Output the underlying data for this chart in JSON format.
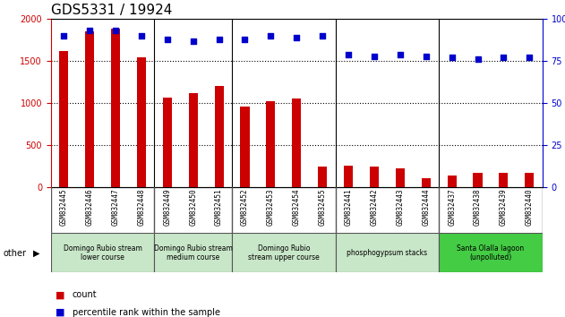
{
  "title": "GDS5331 / 19924",
  "categories": [
    "GSM832445",
    "GSM832446",
    "GSM832447",
    "GSM832448",
    "GSM832449",
    "GSM832450",
    "GSM832451",
    "GSM832452",
    "GSM832453",
    "GSM832454",
    "GSM832455",
    "GSM832441",
    "GSM832442",
    "GSM832443",
    "GSM832444",
    "GSM832437",
    "GSM832438",
    "GSM832439",
    "GSM832440"
  ],
  "counts": [
    1620,
    1850,
    1880,
    1540,
    1060,
    1120,
    1200,
    960,
    1020,
    1050,
    245,
    250,
    245,
    220,
    110,
    140,
    170,
    165,
    170
  ],
  "percentile": [
    90,
    93,
    93,
    90,
    88,
    87,
    88,
    88,
    90,
    89,
    90,
    79,
    78,
    79,
    78,
    77,
    76,
    77,
    77
  ],
  "count_color": "#cc0000",
  "dot_color": "#0000cc",
  "ylim_left": [
    0,
    2000
  ],
  "ylim_right": [
    0,
    100
  ],
  "yticks_left": [
    0,
    500,
    1000,
    1500,
    2000
  ],
  "yticks_right": [
    0,
    25,
    50,
    75,
    100
  ],
  "groups": [
    {
      "label": "Domingo Rubio stream\nlower course",
      "start": 0,
      "end": 4,
      "color": "#c8e6c8"
    },
    {
      "label": "Domingo Rubio stream\nmedium course",
      "start": 4,
      "end": 7,
      "color": "#c8e6c8"
    },
    {
      "label": "Domingo Rubio\nstream upper course",
      "start": 7,
      "end": 11,
      "color": "#c8e6c8"
    },
    {
      "label": "phosphogypsum stacks",
      "start": 11,
      "end": 15,
      "color": "#c8e6c8"
    },
    {
      "label": "Santa Olalla lagoon\n(unpolluted)",
      "start": 15,
      "end": 19,
      "color": "#44cc44"
    }
  ],
  "other_label": "other",
  "legend_count": "count",
  "legend_percentile": "percentile rank within the sample",
  "background_color": "#ffffff",
  "tick_area_color": "#d0d0d0",
  "group_border_color": "#555555",
  "title_fontsize": 11,
  "tick_fontsize": 7,
  "group_boundaries": [
    0,
    4,
    7,
    11,
    15,
    19
  ]
}
